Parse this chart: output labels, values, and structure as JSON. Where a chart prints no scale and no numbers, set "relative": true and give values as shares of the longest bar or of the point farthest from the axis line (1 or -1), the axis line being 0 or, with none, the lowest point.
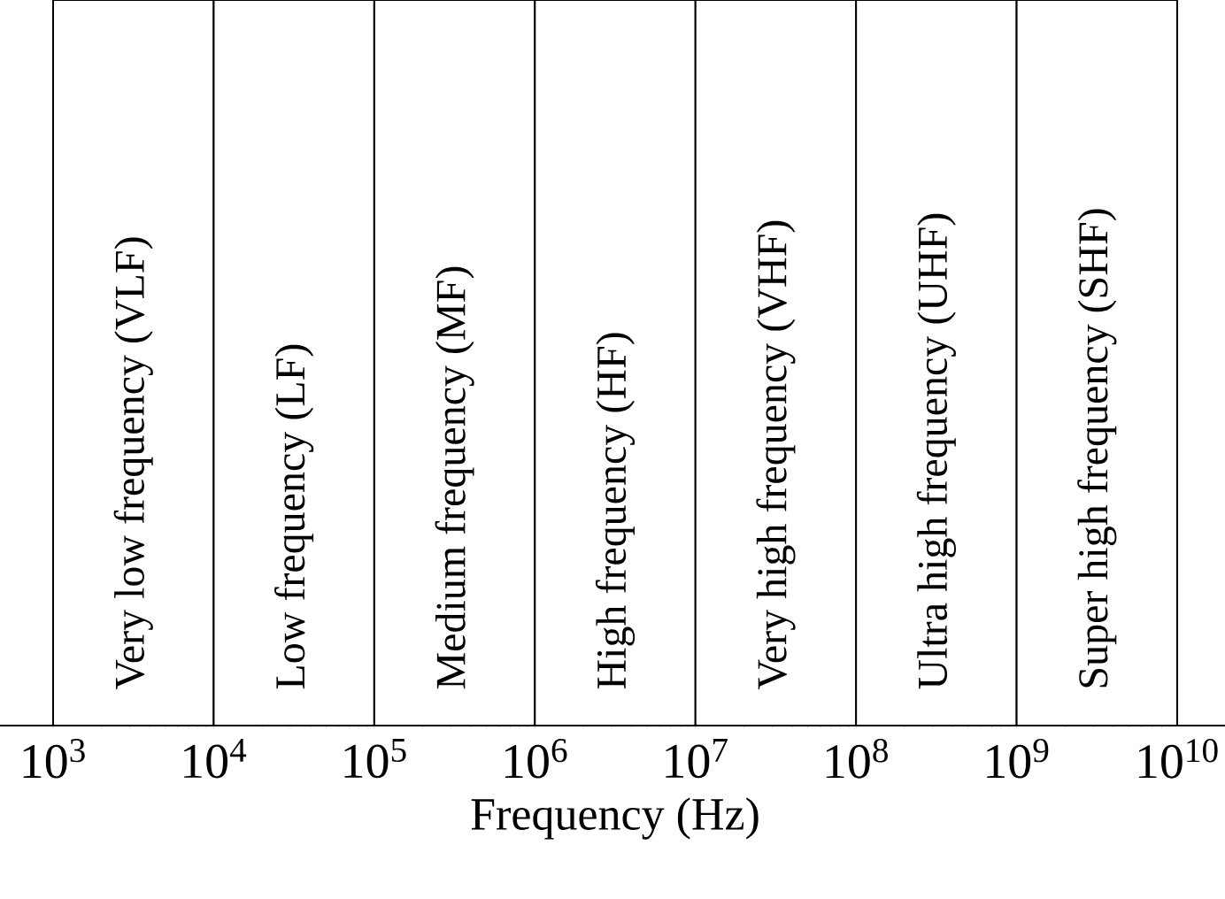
{
  "chart_data": {
    "type": "bar",
    "relative": true,
    "color": "#ffffff",
    "xlabel": "Frequency (Hz)",
    "log": "x",
    "xlim": [
      1000,
      10000000000
    ],
    "xticks": [
      {
        "value": 1000,
        "label": "10$^{3}$"
      },
      {
        "value": 10000,
        "label": "10$^{4}$"
      },
      {
        "value": 100000,
        "label": "10$^{5}$"
      },
      {
        "value": 1000000,
        "label": "10$^{6}$"
      },
      {
        "value": 10000000,
        "label": "10$^{7}$"
      },
      {
        "value": 100000000,
        "label": "10$^{8}$"
      },
      {
        "value": 1000000000,
        "label": "10$^{9}$"
      },
      {
        "value": 10000000000,
        "label": "10$^{10}$"
      }
    ],
    "x": [
      3162,
      31623,
      316228,
      3162278,
      31622777,
      316227766,
      3162277660
    ],
    "values": [
      1,
      1,
      1,
      1,
      1,
      1,
      1
    ],
    "annotations": [
      {
        "text": "Very low frequency (VLF)",
        "x": 3162,
        "y": 0
      },
      {
        "text": "Low frequency (LF)",
        "x": 31623,
        "y": 0
      },
      {
        "text": "Medium frequency (MF)",
        "x": 316228,
        "y": 0
      },
      {
        "text": "High frequency (HF)",
        "x": 3162278,
        "y": 0
      },
      {
        "text": "Very high frequency (VHF)",
        "x": 31622777,
        "y": 0
      },
      {
        "text": "Ultra high frequency (UHF)",
        "x": 316227766,
        "y": 0
      },
      {
        "text": "Super high frequency (SHF)",
        "x": 3162277660,
        "y": 0
      }
    ]
  }
}
